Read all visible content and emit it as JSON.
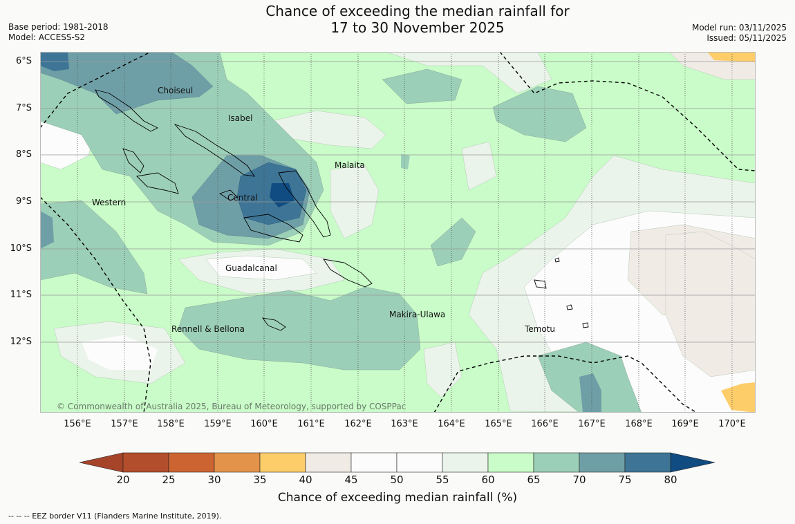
{
  "header": {
    "title_line1": "Chance of exceeding the median rainfall for",
    "title_line2": "17 to 30 November 2025",
    "base_period": "Base period: 1981-2018",
    "model": "Model: ACCESS-S2",
    "model_run": "Model run: 03/11/2025",
    "issued": "Issued: 05/11/2025"
  },
  "map": {
    "lat_labels": [
      "6°S",
      "7°S",
      "8°S",
      "9°S",
      "10°S",
      "11°S",
      "12°S"
    ],
    "lon_labels": [
      "156°E",
      "157°E",
      "158°E",
      "159°E",
      "160°E",
      "161°E",
      "162°E",
      "163°E",
      "164°E",
      "165°E",
      "166°E",
      "167°E",
      "168°E",
      "169°E",
      "170°E"
    ],
    "regions": {
      "choiseul": "Choiseul",
      "isabel": "Isabel",
      "malaita": "Malaita",
      "central": "Central",
      "western": "Western",
      "guadalcanal": "Guadalcanal",
      "makira": "Makira-Ulawa",
      "rennell": "Rennell & Bellona",
      "temotu": "Temotu"
    },
    "copyright": "© Commonwealth of Australia 2025, Bureau of Meteorology, supported by COSPPac"
  },
  "colorbar": {
    "ticks": [
      "20",
      "25",
      "30",
      "35",
      "40",
      "45",
      "50",
      "55",
      "60",
      "65",
      "70",
      "75",
      "80"
    ],
    "colors": [
      "#a6442a",
      "#b24e2b",
      "#cc6432",
      "#e4934a",
      "#fdcd6a",
      "#f1ebe6",
      "#fbfcfb",
      "#fbfcfb",
      "#eaf4ea",
      "#c9fcc8",
      "#9ccfb8",
      "#6f9fa6",
      "#3e7596",
      "#104c81"
    ],
    "label": "Chance of exceeding median rainfall (%)"
  },
  "footnote": "--  --  -- EEZ border V11 (Flanders Marine Institute, 2019)."
}
